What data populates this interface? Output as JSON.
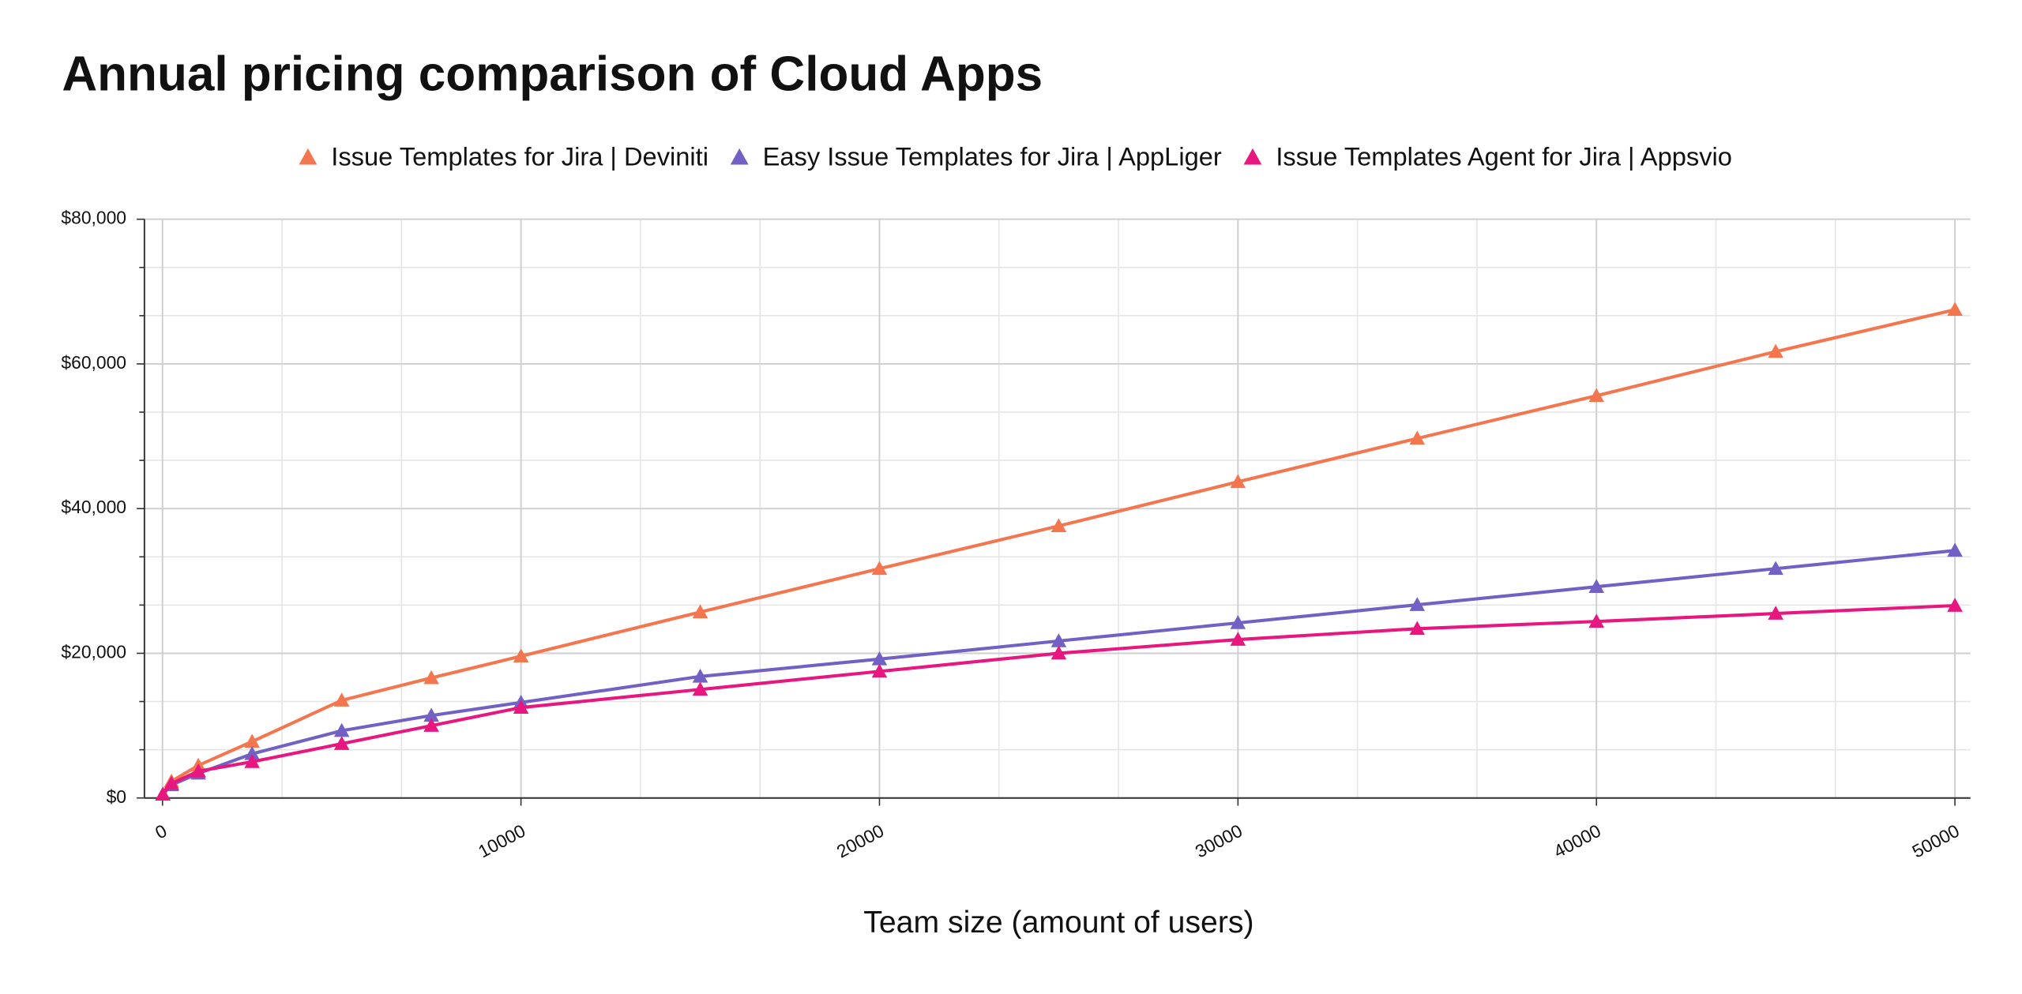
{
  "chart_data": {
    "type": "line",
    "title": "Annual pricing comparison of Cloud Apps",
    "x_label": "Team size (amount of users)",
    "x": [
      10,
      250,
      1000,
      2500,
      5000,
      7500,
      10000,
      15000,
      20000,
      25000,
      30000,
      35000,
      40000,
      45000,
      50000
    ],
    "series": [
      {
        "name": "Issue Templates for Jira | Deviniti",
        "color": "#f4764f",
        "values": [
          500,
          2300,
          4500,
          7800,
          13500,
          16600,
          19600,
          25700,
          31700,
          37600,
          43700,
          49700,
          55600,
          61700,
          67500
        ]
      },
      {
        "name": "Easy Issue Templates for Jira | AppLiger",
        "color": "#7360c4",
        "values": [
          500,
          1800,
          3400,
          6100,
          9300,
          11400,
          13200,
          16800,
          19200,
          21700,
          24200,
          26700,
          29200,
          31700,
          34200
        ]
      },
      {
        "name": "Issue Templates Agent for Jira | Appsvio",
        "color": "#e8167f",
        "values": [
          500,
          2000,
          3700,
          5000,
          7500,
          10000,
          12500,
          15000,
          17500,
          20000,
          21900,
          23400,
          24400,
          25500,
          26600
        ]
      }
    ],
    "xlim": [
      0,
      50000
    ],
    "xticks": [
      0,
      10000,
      20000,
      30000,
      40000,
      50000
    ],
    "ylim": [
      0,
      80000
    ],
    "yticks": [
      {
        "value": 0,
        "label": "$0"
      },
      {
        "value": 20000,
        "label": "$20,000"
      },
      {
        "value": 40000,
        "label": "$40,000"
      },
      {
        "value": 60000,
        "label": "$60,000"
      },
      {
        "value": 80000,
        "label": "$80,000"
      }
    ],
    "grid": true,
    "legend": "top"
  }
}
